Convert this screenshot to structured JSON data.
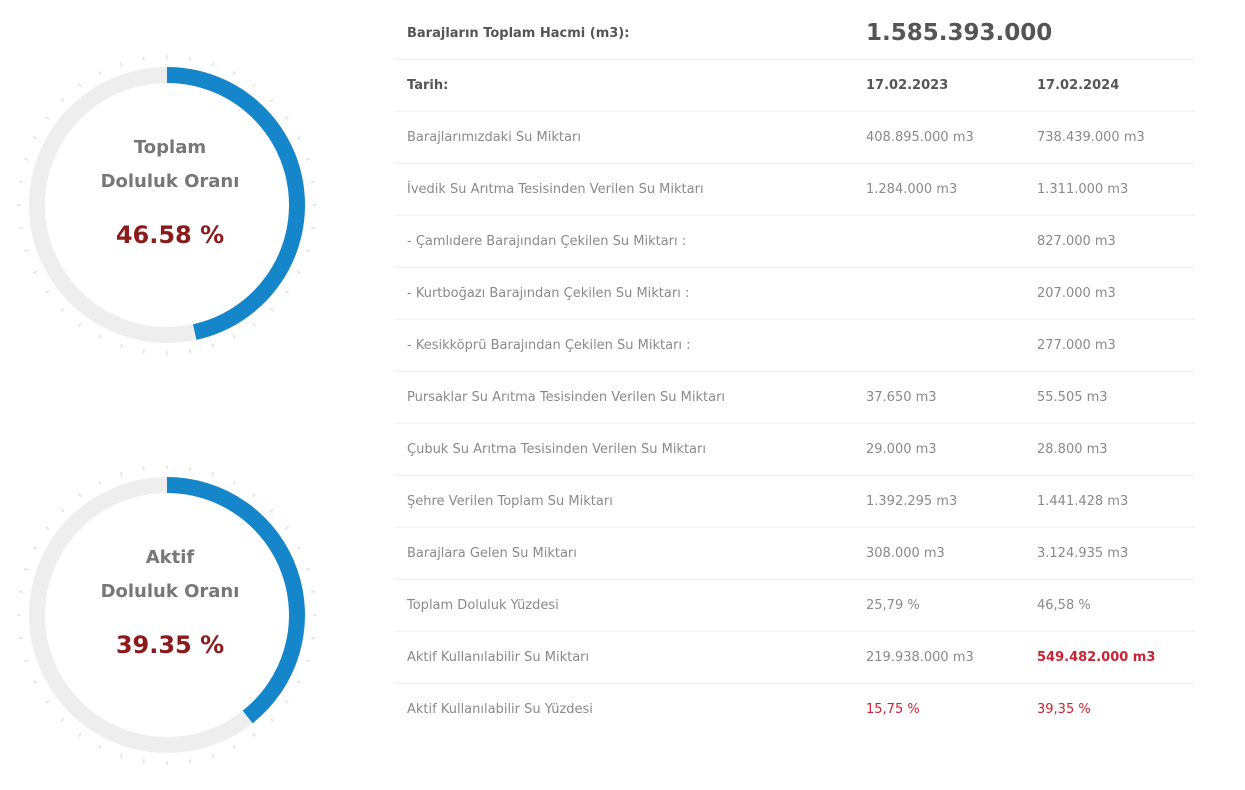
{
  "gauges": [
    {
      "label_line1": "Toplam",
      "label_line2": "Doluluk Oranı",
      "value_text": "46.58 %",
      "fraction": 0.4658
    },
    {
      "label_line1": "Aktif",
      "label_line2": "Doluluk Oranı",
      "value_text": "39.35 %",
      "fraction": 0.3935
    }
  ],
  "colors": {
    "arc": "#1586c9",
    "track": "#eeeeee",
    "value_text": "#8b1a1a",
    "highlight": "#cc2233"
  },
  "table": {
    "total_volume_label": "Barajların Toplam Hacmi (m3):",
    "total_volume_value": "1.585.393.000",
    "date_label": "Tarih:",
    "date_1": "17.02.2023",
    "date_2": "17.02.2024",
    "rows": [
      {
        "label": "Barajlarımızdaki Su Miktarı",
        "v1": "408.895.000 m3",
        "v2": "738.439.000 m3"
      },
      {
        "label": "İvedik Su Arıtma Tesisinden Verilen Su Miktarı",
        "v1": "1.284.000 m3",
        "v2": "1.311.000 m3"
      },
      {
        "label": "- Çamlıdere Barajından Çekilen Su Miktarı :",
        "v1": "",
        "v2": "827.000 m3"
      },
      {
        "label": "- Kurtboğazı Barajından Çekilen Su Miktarı :",
        "v1": "",
        "v2": "207.000 m3"
      },
      {
        "label": "- Kesikköprü Barajından Çekilen Su Miktarı :",
        "v1": "",
        "v2": "277.000 m3"
      },
      {
        "label": "Pursaklar Su Arıtma Tesisinden Verilen Su Miktarı",
        "v1": "37.650 m3",
        "v2": "55.505 m3"
      },
      {
        "label": "Çubuk Su Arıtma Tesisinden Verilen Su Miktarı",
        "v1": "29.000 m3",
        "v2": "28.800 m3"
      },
      {
        "label": "Şehre Verilen Toplam Su Miktarı",
        "v1": "1.392.295 m3",
        "v2": "1.441.428 m3"
      },
      {
        "label": "Barajlara Gelen Su Miktarı",
        "v1": "308.000 m3",
        "v2": "3.124.935 m3"
      },
      {
        "label": "Toplam Doluluk Yüzdesi",
        "v1": "25,79 %",
        "v2": "46,58 %"
      },
      {
        "label": "Aktif Kullanılabilir Su Miktarı",
        "v1": "219.938.000 m3",
        "v2": "549.482.000 m3"
      },
      {
        "label": "Aktif Kullanılabilir Su Yüzdesi",
        "v1": "15,75 %",
        "v2": "39,35 %"
      }
    ]
  }
}
